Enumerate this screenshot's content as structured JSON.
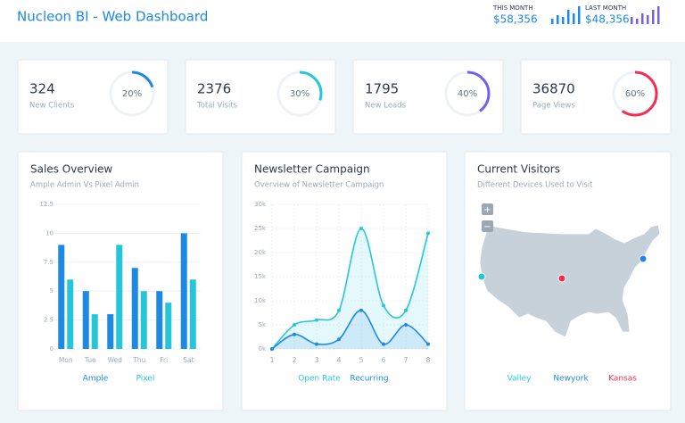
{
  "header": {
    "title": "Nucleon BI - Web Dashboard",
    "this_month": {
      "label": "THIS MONTH",
      "value": "$58,356",
      "color": "#1e88e5",
      "bars": [
        3,
        5,
        4,
        8,
        6,
        10
      ]
    },
    "last_month": {
      "label": "LAST MONTH",
      "value": "$48,356",
      "color": "#7460ee",
      "bars": [
        4,
        3,
        6,
        5,
        8,
        10
      ]
    }
  },
  "stats": [
    {
      "value": 324,
      "label": "New Clients",
      "percent": {
        "value": 20,
        "label": "20%"
      },
      "color": "#1e88e5"
    },
    {
      "value": 2376,
      "label": "Total Visits",
      "percent": {
        "value": 30,
        "label": "30%"
      },
      "color": "#26c6da"
    },
    {
      "value": 1795,
      "label": "New Leads",
      "percent": {
        "value": 40,
        "label": "40%"
      },
      "color": "#7460ee"
    },
    {
      "value": 36870,
      "label": "Page Views",
      "percent": {
        "value": 60,
        "label": "60%"
      },
      "color": "#f62d51"
    }
  ],
  "chart_data": [
    {
      "type": "bar",
      "title": "Sales Overview",
      "subtitle": "Ample Admin Vs Pixel Admin",
      "categories": [
        "Mon",
        "Tue",
        "Wed",
        "Thu",
        "Fri",
        "Sat"
      ],
      "series": [
        {
          "name": "Ample",
          "color": "#1e88e5",
          "values": [
            9,
            5,
            3,
            7,
            5,
            10
          ]
        },
        {
          "name": "Pixel",
          "color": "#26c6da",
          "values": [
            6,
            3,
            9,
            5,
            4,
            6
          ]
        }
      ],
      "ylim": [
        0,
        12.5
      ],
      "yticks": [
        0,
        2.5,
        5,
        7.5,
        10,
        12.5
      ],
      "grid": true
    },
    {
      "type": "line",
      "title": "Newsletter Campaign",
      "subtitle": "Overview of Newsletter Campaign",
      "x": [
        1,
        2,
        3,
        4,
        5,
        6,
        7,
        8
      ],
      "xlim": [
        1,
        8
      ],
      "xticks": [
        1,
        2,
        3,
        4,
        5,
        6,
        7,
        8
      ],
      "series": [
        {
          "name": "Open Rate",
          "color": "#26c6da",
          "values": [
            0,
            5000,
            6000,
            8000,
            25000,
            9000,
            8000,
            24000
          ]
        },
        {
          "name": "Recurring",
          "color": "#1e88e5",
          "values": [
            0,
            3000,
            1000,
            2000,
            8000,
            1000,
            5000,
            1000
          ]
        }
      ],
      "ylim": [
        0,
        30000
      ],
      "yticks": [
        {
          "value": 0,
          "label": "0k"
        },
        {
          "value": 5000,
          "label": "5k"
        },
        {
          "value": 10000,
          "label": "10k"
        },
        {
          "value": 15000,
          "label": "15k"
        },
        {
          "value": 20000,
          "label": "20k"
        },
        {
          "value": 25000,
          "label": "25k"
        },
        {
          "value": 30000,
          "label": "30k"
        }
      ],
      "grid": true,
      "area": true
    }
  ],
  "map": {
    "title": "Current Visitors",
    "subtitle": "Different Devices Used to Visit",
    "zoom_in": "+",
    "zoom_out": "−",
    "markers": [
      {
        "name": "Valley",
        "color": "#26c6da"
      },
      {
        "name": "Newyork",
        "color": "#1e88e5"
      },
      {
        "name": "Kansas",
        "color": "#f62d51"
      }
    ]
  }
}
